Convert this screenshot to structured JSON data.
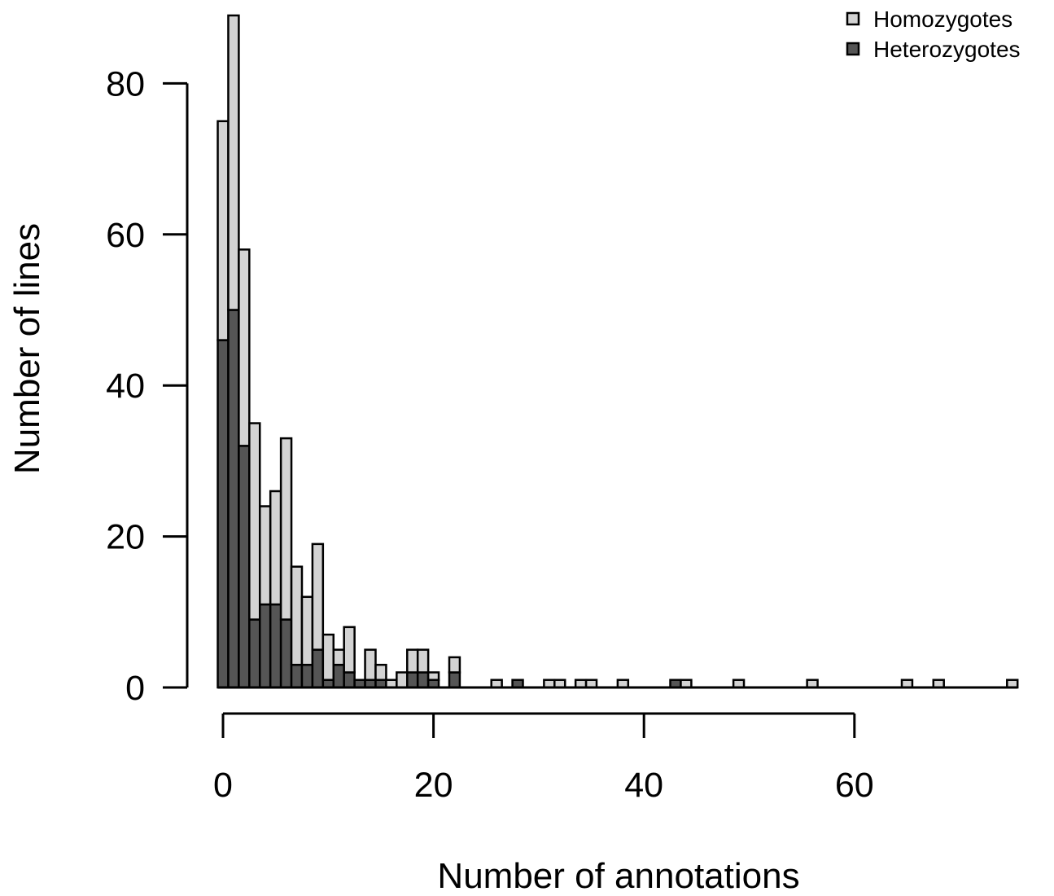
{
  "chart_data": {
    "type": "bar",
    "stacked": true,
    "xlabel": "Number of annotations",
    "ylabel": "Number of lines",
    "xlim": [
      0,
      75
    ],
    "ylim": [
      0,
      80
    ],
    "xticks": [
      0,
      20,
      40,
      60
    ],
    "yticks": [
      0,
      20,
      40,
      60,
      80
    ],
    "grid": false,
    "legend_position": "top-right",
    "bin_width": 1,
    "x": [
      0,
      1,
      2,
      3,
      4,
      5,
      6,
      7,
      8,
      9,
      10,
      11,
      12,
      13,
      14,
      15,
      16,
      17,
      18,
      19,
      20,
      21,
      22,
      23,
      24,
      25,
      26,
      27,
      28,
      29,
      30,
      31,
      32,
      33,
      34,
      35,
      36,
      37,
      38,
      39,
      40,
      41,
      42,
      43,
      44,
      45,
      46,
      47,
      48,
      49,
      50,
      51,
      52,
      53,
      54,
      55,
      56,
      57,
      58,
      59,
      60,
      61,
      62,
      63,
      64,
      65,
      66,
      67,
      68,
      69,
      70,
      71,
      72,
      73,
      74,
      75
    ],
    "series": [
      {
        "name": "Heterozygotes",
        "color": "#555555",
        "values": [
          46,
          50,
          32,
          9,
          11,
          11,
          9,
          3,
          3,
          5,
          1,
          3,
          2,
          1,
          1,
          1,
          0,
          0,
          2,
          2,
          1,
          0,
          2,
          0,
          0,
          0,
          0,
          0,
          1,
          0,
          0,
          0,
          0,
          0,
          0,
          0,
          0,
          0,
          0,
          0,
          0,
          0,
          0,
          1,
          0,
          0,
          0,
          0,
          0,
          0,
          0,
          0,
          0,
          0,
          0,
          0,
          0,
          0,
          0,
          0,
          0,
          0,
          0,
          0,
          0,
          0,
          0,
          0,
          0,
          0,
          0,
          0,
          0,
          0,
          0,
          0
        ]
      },
      {
        "name": "Homozygotes",
        "color": "#d3d3d3",
        "values": [
          29,
          39,
          26,
          26,
          13,
          15,
          24,
          13,
          9,
          14,
          6,
          2,
          6,
          0,
          4,
          2,
          1,
          2,
          3,
          3,
          1,
          0,
          2,
          0,
          0,
          0,
          1,
          0,
          0,
          0,
          0,
          1,
          1,
          0,
          1,
          1,
          0,
          0,
          1,
          0,
          0,
          0,
          0,
          0,
          1,
          0,
          0,
          0,
          0,
          1,
          0,
          0,
          0,
          0,
          0,
          0,
          1,
          0,
          0,
          0,
          0,
          0,
          0,
          0,
          0,
          1,
          0,
          0,
          1,
          0,
          0,
          0,
          0,
          0,
          0,
          1
        ]
      }
    ]
  }
}
